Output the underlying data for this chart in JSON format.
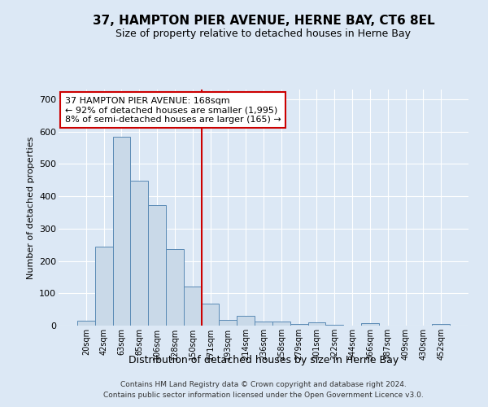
{
  "title": "37, HAMPTON PIER AVENUE, HERNE BAY, CT6 8EL",
  "subtitle": "Size of property relative to detached houses in Herne Bay",
  "xlabel": "Distribution of detached houses by size in Herne Bay",
  "ylabel": "Number of detached properties",
  "bar_labels": [
    "20sqm",
    "42sqm",
    "63sqm",
    "85sqm",
    "106sqm",
    "128sqm",
    "150sqm",
    "171sqm",
    "193sqm",
    "214sqm",
    "236sqm",
    "258sqm",
    "279sqm",
    "301sqm",
    "322sqm",
    "344sqm",
    "366sqm",
    "387sqm",
    "409sqm",
    "430sqm",
    "452sqm"
  ],
  "bar_values": [
    14,
    245,
    585,
    447,
    373,
    237,
    120,
    68,
    18,
    29,
    13,
    12,
    6,
    9,
    3,
    0,
    7,
    0,
    0,
    0,
    5
  ],
  "bar_color": "#c9d9e8",
  "bar_edge_color": "#5a8ab5",
  "vline_x": 7,
  "vline_color": "#cc0000",
  "ylim": [
    0,
    730
  ],
  "yticks": [
    0,
    100,
    200,
    300,
    400,
    500,
    600,
    700
  ],
  "annotation_text": "37 HAMPTON PIER AVENUE: 168sqm\n← 92% of detached houses are smaller (1,995)\n8% of semi-detached houses are larger (165) →",
  "annotation_box_color": "#cc0000",
  "footer_line1": "Contains HM Land Registry data © Crown copyright and database right 2024.",
  "footer_line2": "Contains public sector information licensed under the Open Government Licence v3.0.",
  "bg_color": "#dce8f5",
  "plot_bg_color": "#dce8f5",
  "grid_color": "#ffffff",
  "title_fontsize": 11,
  "subtitle_fontsize": 9,
  "xlabel_fontsize": 9,
  "ylabel_fontsize": 8,
  "tick_fontsize": 7,
  "annotation_fontsize": 8,
  "footer_fontsize": 6.5
}
